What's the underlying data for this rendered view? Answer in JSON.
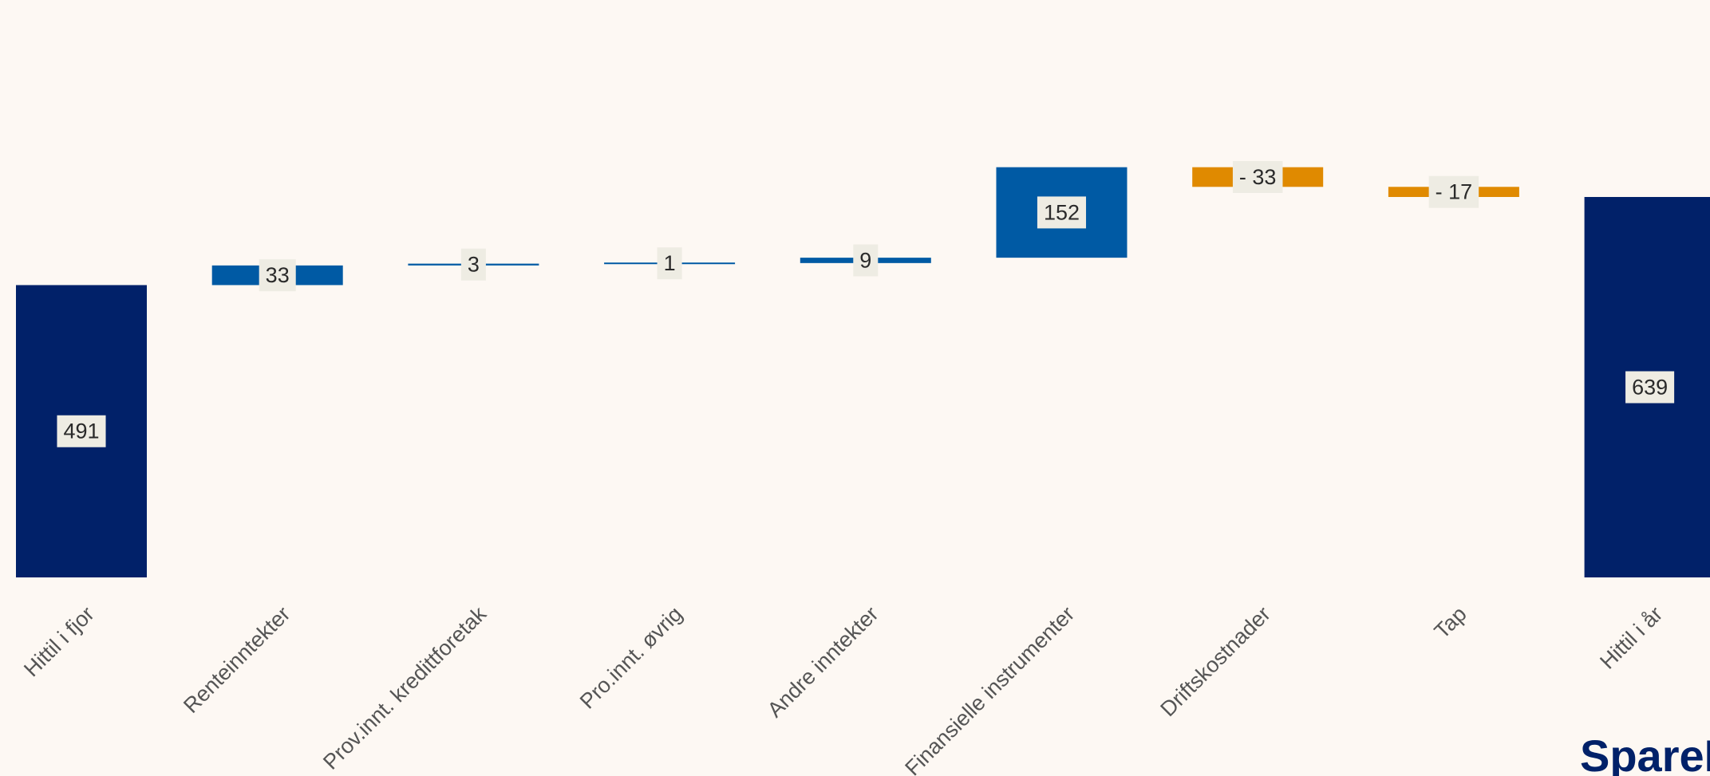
{
  "chart_data": {
    "type": "bar",
    "subtype": "waterfall",
    "categories": [
      "Hittil i fjor",
      "Renteinntekter",
      "Prov.innt. kredittforetak",
      "Pro.innt. øvrig",
      "Andre inntekter",
      "Finansielle instrumenter",
      "Driftskostnader",
      "Tap",
      "Hittil i år"
    ],
    "values": [
      491,
      33,
      3,
      1,
      9,
      152,
      -33,
      -17,
      639
    ],
    "value_labels": [
      "491",
      "33",
      "3",
      "1",
      "9",
      "152",
      "- 33",
      "- 17",
      "639"
    ],
    "kinds": [
      "total",
      "delta",
      "delta",
      "delta",
      "delta",
      "delta",
      "delta",
      "delta",
      "total"
    ],
    "ylim": [
      0,
      700
    ],
    "grid": false,
    "colors": {
      "total": "#012169",
      "increase": "#005aa4",
      "decrease": "#e08a00",
      "label_bg": "#eeece3",
      "background": "#fdf8f3"
    }
  },
  "logo": {
    "text": "SpareB"
  }
}
